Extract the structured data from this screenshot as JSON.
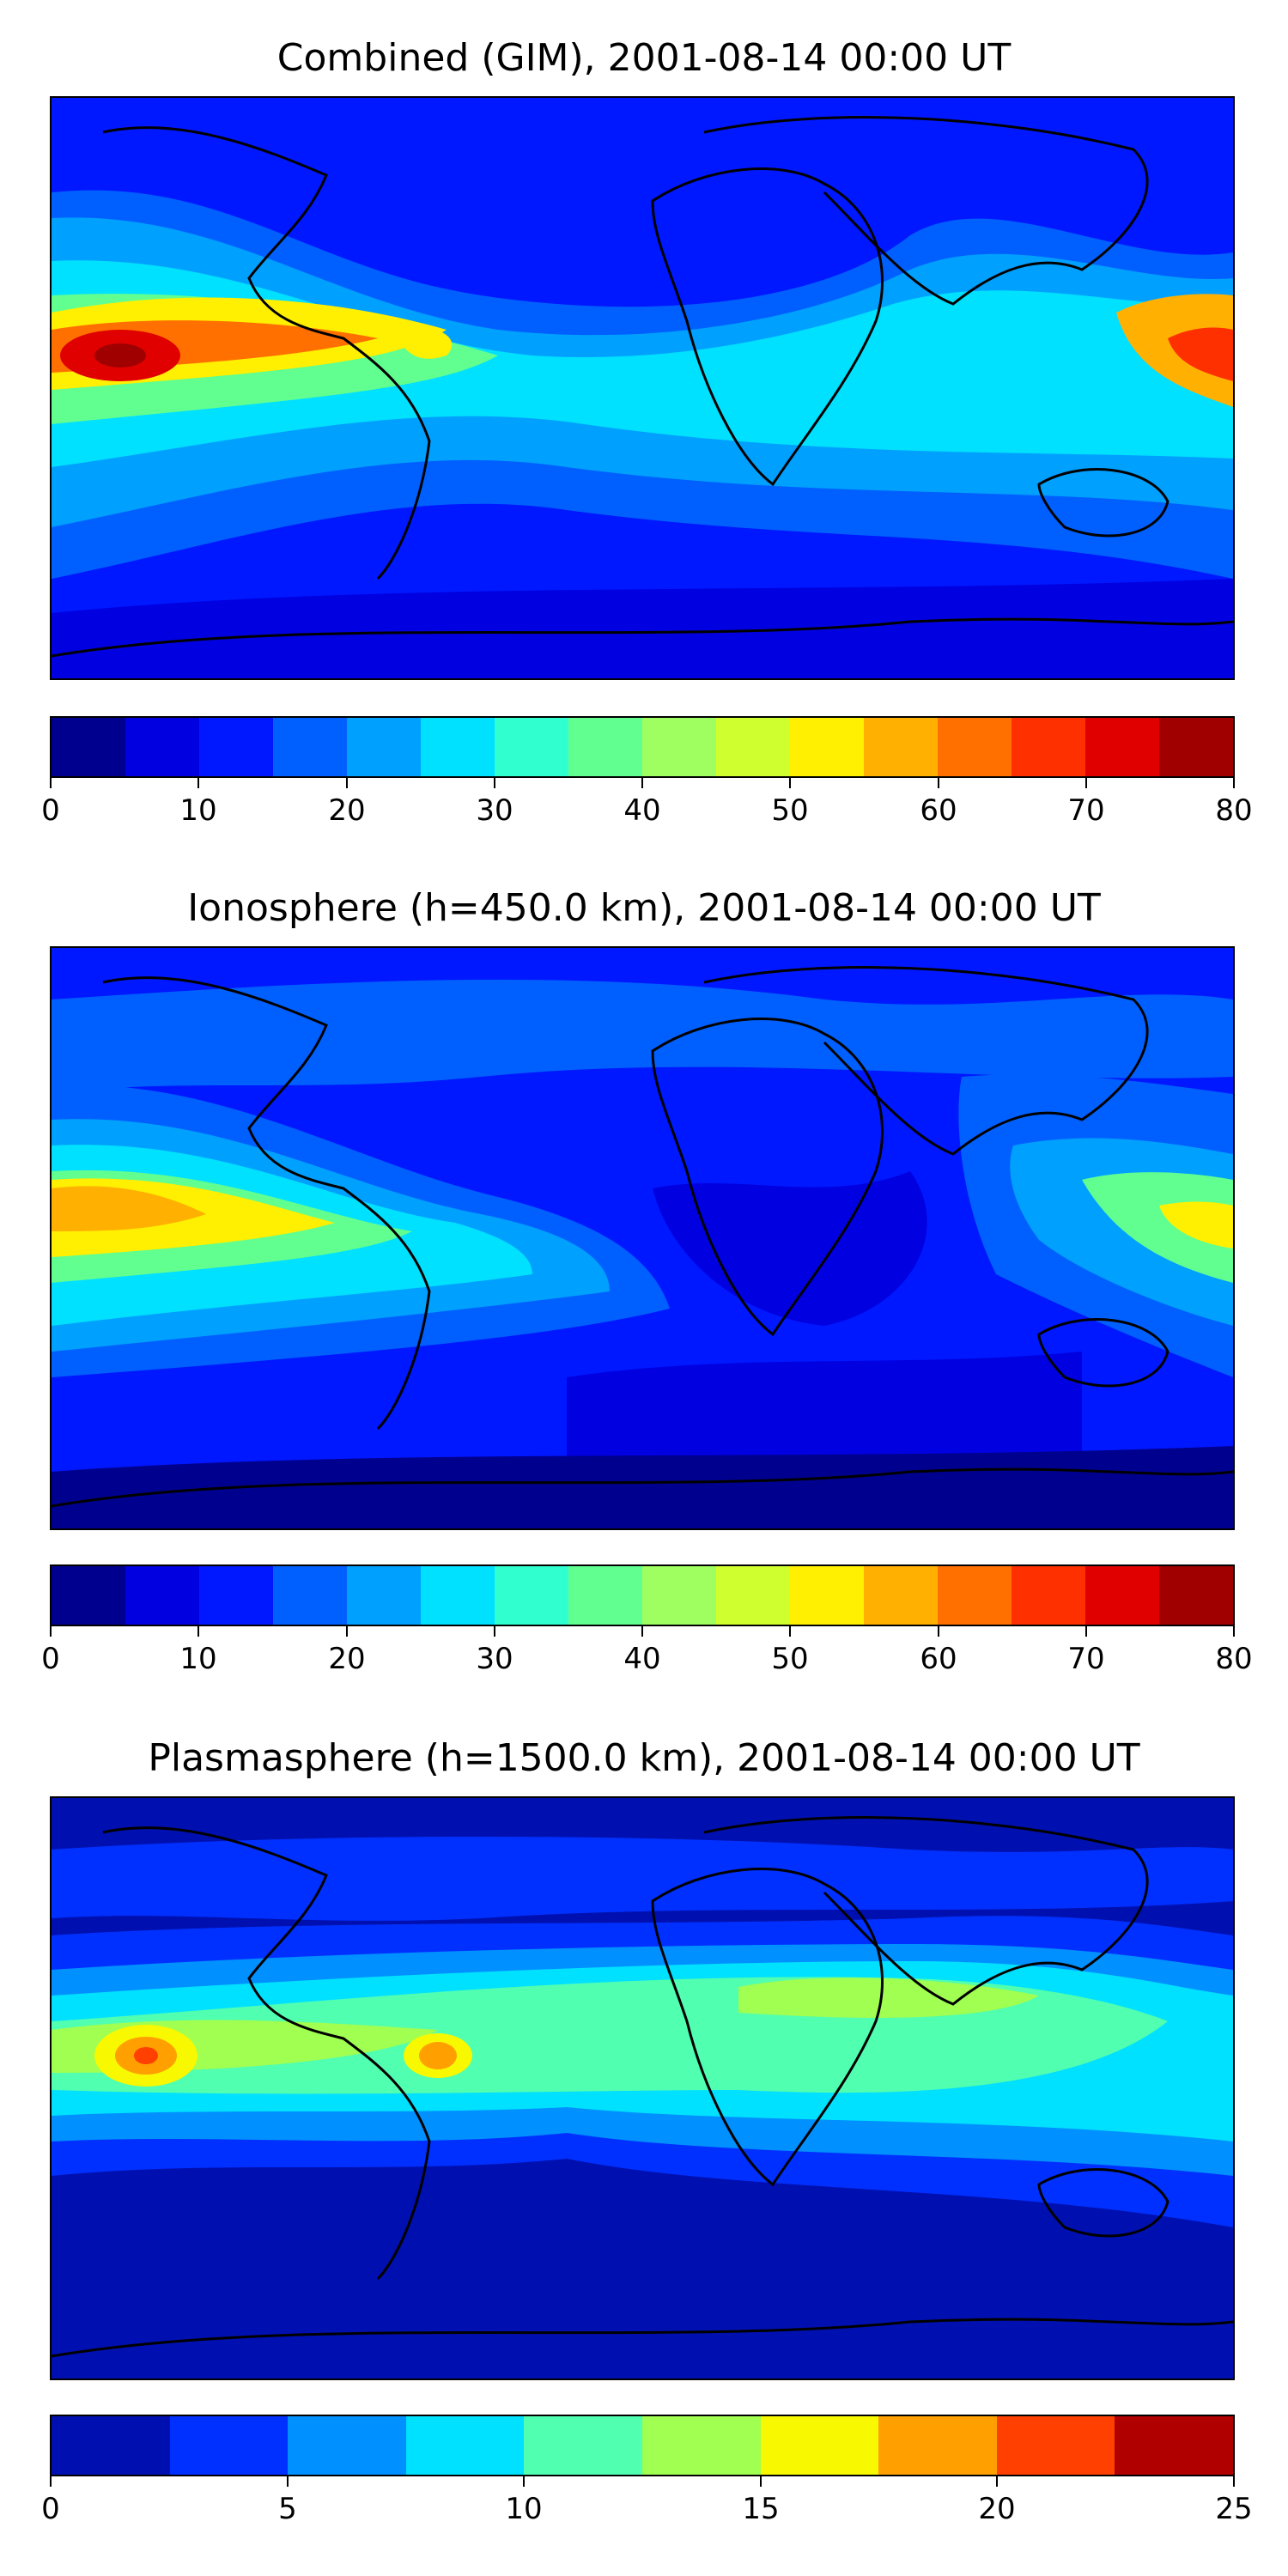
{
  "panels": [
    {
      "title": "Combined (GIM), 2001-08-14 00:00 UT",
      "colorbar": {
        "min": 0,
        "max": 80,
        "levels": [
          0,
          5,
          10,
          15,
          20,
          25,
          30,
          35,
          40,
          45,
          50,
          55,
          60,
          65,
          70,
          75,
          80
        ],
        "tick_labels": [
          "0",
          "10",
          "20",
          "30",
          "40",
          "50",
          "60",
          "70",
          "80"
        ],
        "colors": [
          "#00008f",
          "#0000e0",
          "#0018ff",
          "#0060ff",
          "#00a0ff",
          "#00e0ff",
          "#30ffd0",
          "#60ff90",
          "#a0ff60",
          "#d0ff30",
          "#ffef00",
          "#ffb000",
          "#ff7000",
          "#ff3000",
          "#e00000",
          "#a00000"
        ]
      }
    },
    {
      "title": "Ionosphere  (h=450.0 km), 2001-08-14 00:00 UT",
      "colorbar": {
        "min": 0,
        "max": 80,
        "levels": [
          0,
          5,
          10,
          15,
          20,
          25,
          30,
          35,
          40,
          45,
          50,
          55,
          60,
          65,
          70,
          75,
          80
        ],
        "tick_labels": [
          "0",
          "10",
          "20",
          "30",
          "40",
          "50",
          "60",
          "70",
          "80"
        ],
        "colors": [
          "#00008f",
          "#0000e0",
          "#0018ff",
          "#0060ff",
          "#00a0ff",
          "#00e0ff",
          "#30ffd0",
          "#60ff90",
          "#a0ff60",
          "#d0ff30",
          "#ffef00",
          "#ffb000",
          "#ff7000",
          "#ff3000",
          "#e00000",
          "#a00000"
        ]
      }
    },
    {
      "title": "Plasmasphere (h=1500.0 km), 2001-08-14 00:00 UT",
      "colorbar": {
        "min": 0,
        "max": 25,
        "levels": [
          0,
          2.5,
          5,
          7.5,
          10,
          12.5,
          15,
          17.5,
          20,
          22.5,
          25
        ],
        "tick_labels": [
          "0",
          "5",
          "10",
          "15",
          "20",
          "25"
        ],
        "colors": [
          "#0010b0",
          "#0030ff",
          "#0090ff",
          "#00e0ff",
          "#50ffb0",
          "#a0ff50",
          "#f8f800",
          "#ffa000",
          "#ff4000",
          "#b00000"
        ]
      }
    }
  ]
}
